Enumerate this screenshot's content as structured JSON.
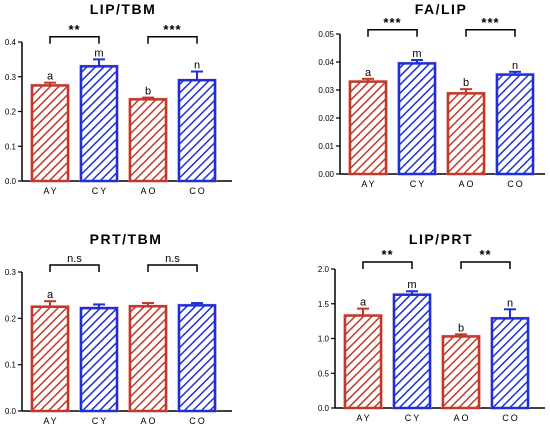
{
  "colors": {
    "young": "#c0392b",
    "old": "#1f2fd6",
    "axis": "#000000",
    "glow": "#f6c9cf"
  },
  "chart_data": [
    {
      "type": "bar",
      "title": "LIP/TBM",
      "categories": [
        "AY",
        "CY",
        "AO",
        "CO"
      ],
      "values": [
        0.275,
        0.33,
        0.235,
        0.29
      ],
      "errors": [
        0.008,
        0.02,
        0.005,
        0.025
      ],
      "bar_labels": [
        "a",
        "m",
        "b",
        "n"
      ],
      "yticks": [
        "0.0",
        "0.1",
        "0.2",
        "0.3",
        "0.4"
      ],
      "ylim": [
        0,
        0.4
      ],
      "brackets": [
        {
          "from": 0,
          "to": 1,
          "label": "**",
          "y": 0.415
        },
        {
          "from": 2,
          "to": 3,
          "label": "***",
          "y": 0.415
        }
      ]
    },
    {
      "type": "bar",
      "title": "FA/LIP",
      "categories": [
        "AY",
        "CY",
        "AO",
        "CO"
      ],
      "values": [
        0.033,
        0.0395,
        0.0288,
        0.0355
      ],
      "errors": [
        0.001,
        0.0012,
        0.0015,
        0.001
      ],
      "bar_labels": [
        "a",
        "m",
        "b",
        "n"
      ],
      "yticks": [
        "0.00",
        "0.01",
        "0.02",
        "0.03",
        "0.04",
        "0.05"
      ],
      "ylim": [
        0,
        0.05
      ],
      "brackets": [
        {
          "from": 0,
          "to": 1,
          "label": "***",
          "y": 0.0515
        },
        {
          "from": 2,
          "to": 3,
          "label": "***",
          "y": 0.0515
        }
      ]
    },
    {
      "type": "bar",
      "title": "PRT/TBM",
      "categories": [
        "AY",
        "CY",
        "AO",
        "CO"
      ],
      "values": [
        0.225,
        0.222,
        0.226,
        0.228
      ],
      "errors": [
        0.012,
        0.008,
        0.007,
        0.005
      ],
      "bar_labels": [
        "a",
        "",
        "",
        ""
      ],
      "yticks": [
        "0.0",
        "0.1",
        "0.2",
        "0.3"
      ],
      "ylim": [
        0,
        0.3
      ],
      "brackets": [
        {
          "from": 0,
          "to": 1,
          "label": "n.s",
          "y": 0.315
        },
        {
          "from": 2,
          "to": 3,
          "label": "n.s",
          "y": 0.315
        }
      ]
    },
    {
      "type": "bar",
      "title": "LIP/PRT",
      "categories": [
        "AY",
        "CY",
        "AO",
        "CO"
      ],
      "values": [
        1.33,
        1.63,
        1.03,
        1.29
      ],
      "errors": [
        0.1,
        0.05,
        0.03,
        0.13
      ],
      "bar_labels": [
        "a",
        "m",
        "b",
        "n"
      ],
      "yticks": [
        "0.0",
        "0.5",
        "1.0",
        "1.5",
        "2.0"
      ],
      "ylim": [
        0,
        2.0
      ],
      "brackets": [
        {
          "from": 0,
          "to": 1,
          "label": "**",
          "y": 2.1
        },
        {
          "from": 2,
          "to": 3,
          "label": "**",
          "y": 2.1
        }
      ]
    }
  ]
}
